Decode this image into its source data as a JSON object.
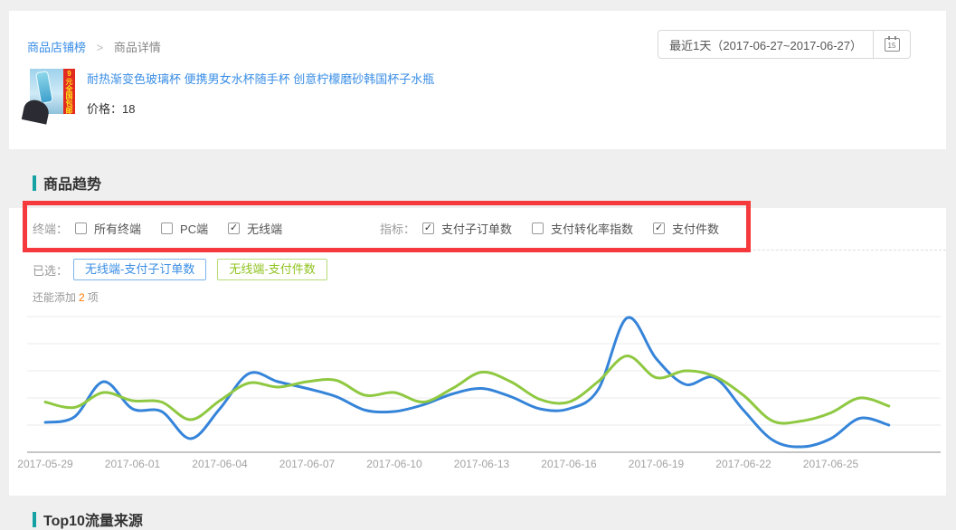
{
  "breadcrumb": {
    "root": "商品店铺榜",
    "sep": ">",
    "current": "商品详情"
  },
  "date_picker": {
    "label": "最近1天（2017-06-27~2017-06-27）",
    "calendar_day": "15"
  },
  "product": {
    "title": "耐热渐变色玻璃杯 便携男女水杯随手杯 创意柠檬磨砂韩国杯子水瓶",
    "price": "价格：18",
    "thumb_badge": "9元全国包邮"
  },
  "trend_section": {
    "title": "商品趋势"
  },
  "filters": {
    "terminal_label": "终端：",
    "terminal_options": [
      {
        "label": "所有终端",
        "checked": false
      },
      {
        "label": "PC端",
        "checked": false
      },
      {
        "label": "无线端",
        "checked": true
      }
    ],
    "metric_label": "指标：",
    "metric_options": [
      {
        "label": "支付子订单数",
        "checked": true
      },
      {
        "label": "支付转化率指数",
        "checked": false
      },
      {
        "label": "支付件数",
        "checked": true
      }
    ]
  },
  "selected": {
    "label": "已选：",
    "tags": [
      {
        "text": "无线端-支付子订单数",
        "color": "#3a8ee6"
      },
      {
        "text": "无线端-支付件数",
        "color": "#8fc31f"
      }
    ]
  },
  "add_more": {
    "prefix": "还能添加",
    "count": "2",
    "suffix": "项"
  },
  "chart_data": {
    "type": "line",
    "title": "",
    "xlabel": "",
    "ylabel": "",
    "x_tick_labels": [
      "2017-05-29",
      "2017-06-01",
      "2017-06-04",
      "2017-06-07",
      "2017-06-10",
      "2017-06-13",
      "2017-06-16",
      "2017-06-19",
      "2017-06-22",
      "2017-06-25"
    ],
    "x_dates": [
      "2017-05-29",
      "2017-05-30",
      "2017-05-31",
      "2017-06-01",
      "2017-06-02",
      "2017-06-03",
      "2017-06-04",
      "2017-06-05",
      "2017-06-06",
      "2017-06-07",
      "2017-06-08",
      "2017-06-09",
      "2017-06-10",
      "2017-06-11",
      "2017-06-12",
      "2017-06-13",
      "2017-06-14",
      "2017-06-15",
      "2017-06-16",
      "2017-06-17",
      "2017-06-18",
      "2017-06-19",
      "2017-06-20",
      "2017-06-21",
      "2017-06-22",
      "2017-06-23",
      "2017-06-24",
      "2017-06-25",
      "2017-06-26",
      "2017-06-27"
    ],
    "series": [
      {
        "name": "无线端-支付子订单数",
        "color": "#3584d9",
        "values": [
          1.1,
          1.3,
          2.6,
          1.6,
          1.5,
          0.5,
          1.6,
          2.9,
          2.6,
          2.35,
          2.05,
          1.55,
          1.5,
          1.75,
          2.15,
          2.35,
          2.05,
          1.6,
          1.6,
          2.3,
          4.95,
          3.45,
          2.5,
          2.75,
          1.55,
          0.45,
          0.2,
          0.5,
          1.25,
          1.0
        ]
      },
      {
        "name": "无线端-支付件数",
        "color": "#8fc841",
        "values": [
          1.85,
          1.65,
          2.2,
          1.9,
          1.85,
          1.2,
          1.9,
          2.55,
          2.4,
          2.6,
          2.65,
          2.1,
          2.2,
          1.85,
          2.35,
          2.95,
          2.6,
          1.95,
          1.85,
          2.6,
          3.55,
          2.75,
          3.0,
          2.8,
          2.1,
          1.15,
          1.15,
          1.45,
          2.0,
          1.7
        ]
      }
    ],
    "ylim": [
      0,
      5.3
    ],
    "y_axis_labels": "none",
    "grid": true,
    "legend_position": "none"
  },
  "next_section": {
    "title": "Top10流量来源"
  }
}
